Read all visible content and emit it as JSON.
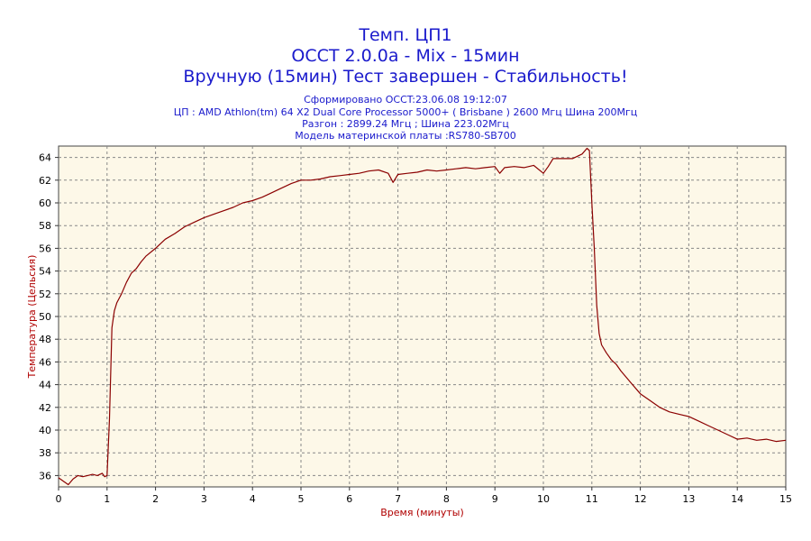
{
  "chart_data": {
    "type": "line",
    "title_lines": [
      "Темп. ЦП1",
      "OCCT 2.0.0a - Mix - 15мин",
      "Вручную (15мин) Тест завершен - Стабильность!"
    ],
    "subtitle_lines": [
      "Сформировано OCCT:23.06.08 19:12:07",
      "ЦП : AMD Athlon(tm) 64 X2 Dual Core Processor 5000+ ( Brisbane ) 2600 Мгц Шина 200Мгц",
      "Разгон : 2899.24 Мгц ; Шина 223.02Мгц",
      "Модель материнской платы :RS780-SB700"
    ],
    "xlabel": "Время (минуты)",
    "ylabel": "Температура (Цельсия)",
    "xlim": [
      0,
      15
    ],
    "ylim": [
      35,
      65
    ],
    "x_ticks": [
      "0",
      "1",
      "2",
      "3",
      "4",
      "5",
      "6",
      "7",
      "8",
      "9",
      "10",
      "11",
      "12",
      "13",
      "14",
      "15"
    ],
    "y_ticks": [
      "36",
      "38",
      "40",
      "42",
      "44",
      "46",
      "48",
      "50",
      "52",
      "54",
      "56",
      "58",
      "60",
      "62",
      "64"
    ],
    "grid": true,
    "colors": {
      "line": "#8b0000",
      "title": "#1a1acc",
      "axis_label": "#b00000",
      "plot_bg": "#fdf8e8",
      "grid": "#888888"
    },
    "series": [
      {
        "x": [
          0,
          0.1,
          0.2,
          0.3,
          0.4,
          0.5,
          0.6,
          0.7,
          0.8,
          0.9,
          0.95,
          1.0,
          1.05,
          1.1,
          1.15,
          1.2,
          1.3,
          1.4,
          1.5,
          1.6,
          1.7,
          1.8,
          2.0,
          2.2,
          2.4,
          2.6,
          2.8,
          3.0,
          3.2,
          3.4,
          3.6,
          3.8,
          4.0,
          4.2,
          4.4,
          4.6,
          4.8,
          5.0,
          5.2,
          5.4,
          5.6,
          5.8,
          6.0,
          6.2,
          6.4,
          6.6,
          6.8,
          6.9,
          7.0,
          7.2,
          7.4,
          7.6,
          7.8,
          8.0,
          8.2,
          8.4,
          8.6,
          8.8,
          9.0,
          9.1,
          9.2,
          9.4,
          9.6,
          9.8,
          10.0,
          10.1,
          10.2,
          10.4,
          10.6,
          10.8,
          10.9,
          10.95,
          11.0,
          11.05,
          11.1,
          11.15,
          11.2,
          11.3,
          11.4,
          11.5,
          11.6,
          11.8,
          12.0,
          12.2,
          12.4,
          12.6,
          12.8,
          13.0,
          13.2,
          13.4,
          13.6,
          13.8,
          14.0,
          14.2,
          14.4,
          14.6,
          14.8,
          15.0
        ],
        "y": [
          35.8,
          35.5,
          35.2,
          35.7,
          36.0,
          35.9,
          36.0,
          36.1,
          36.0,
          36.2,
          35.9,
          36.0,
          41.0,
          49.0,
          50.5,
          51.2,
          52.0,
          53.0,
          53.8,
          54.2,
          54.8,
          55.3,
          56.0,
          56.8,
          57.3,
          57.9,
          58.3,
          58.7,
          59.0,
          59.3,
          59.6,
          60.0,
          60.2,
          60.5,
          60.9,
          61.3,
          61.7,
          62.0,
          62.0,
          62.1,
          62.3,
          62.4,
          62.5,
          62.6,
          62.8,
          62.9,
          62.6,
          61.8,
          62.5,
          62.6,
          62.7,
          62.9,
          62.8,
          62.9,
          63.0,
          63.1,
          63.0,
          63.1,
          63.2,
          62.6,
          63.1,
          63.2,
          63.1,
          63.3,
          62.6,
          63.2,
          63.9,
          63.9,
          63.9,
          64.3,
          64.8,
          64.6,
          60.0,
          56.0,
          51.0,
          48.5,
          47.5,
          46.8,
          46.2,
          45.8,
          45.2,
          44.2,
          43.2,
          42.6,
          42.0,
          41.6,
          41.4,
          41.2,
          40.8,
          40.4,
          40.0,
          39.6,
          39.2,
          39.3,
          39.1,
          39.2,
          39.0,
          39.1
        ]
      }
    ]
  }
}
